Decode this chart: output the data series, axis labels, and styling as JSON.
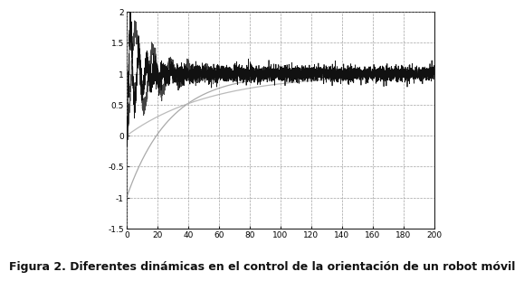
{
  "caption": "Figura 2. Diferentes dinámicas en el control de la orientación de un robot móvil",
  "xlim": [
    0,
    200
  ],
  "ylim": [
    -1.5,
    2.0
  ],
  "xticks": [
    0,
    20,
    40,
    60,
    80,
    100,
    120,
    140,
    160,
    180,
    200
  ],
  "yticks": [
    -1.5,
    -1.0,
    -0.5,
    0.0,
    0.5,
    1.0,
    1.5,
    2.0
  ],
  "grid_color": "#999999",
  "background_color": "#ffffff",
  "caption_fontsize": 9,
  "n_points": 4000
}
